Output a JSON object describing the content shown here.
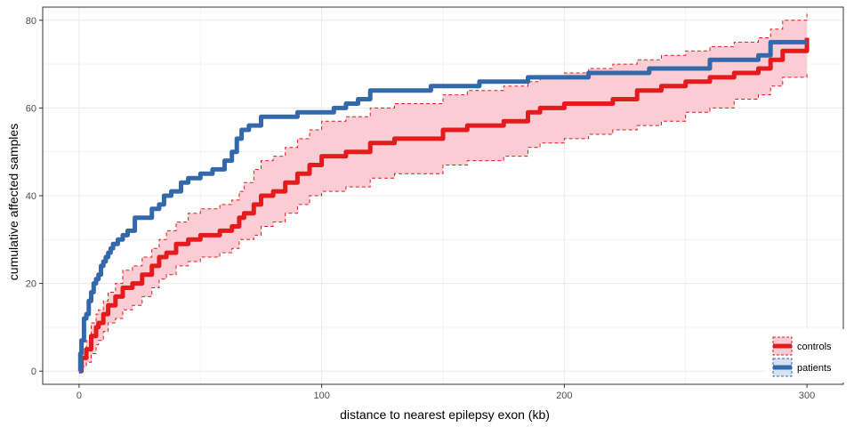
{
  "chart_data": {
    "type": "line",
    "step": true,
    "xlabel": "distance to nearest epilepsy exon (kb)",
    "ylabel": "cumulative affected samples",
    "xlim": [
      -15,
      315
    ],
    "ylim": [
      -3,
      83
    ],
    "xticks": [
      0,
      100,
      200,
      300
    ],
    "yticks": [
      0,
      20,
      40,
      60,
      80
    ],
    "grid": true,
    "legend_position": "bottom-right",
    "colors": {
      "controls": "#e41a1c",
      "controls_band": "#f9cdd3",
      "patients": "#3369ab",
      "patients_band": "#d5e2f1",
      "grid": "#ebebeb",
      "border": "#333333"
    },
    "series": [
      {
        "name": "controls",
        "x": [
          0,
          1,
          3,
          5,
          7,
          8,
          10,
          12,
          15,
          18,
          22,
          26,
          30,
          33,
          36,
          40,
          45,
          50,
          58,
          63,
          66,
          68,
          72,
          75,
          80,
          85,
          90,
          95,
          100,
          110,
          120,
          130,
          150,
          160,
          175,
          185,
          190,
          200,
          210,
          220,
          230,
          240,
          250,
          260,
          270,
          280,
          285,
          290,
          300
        ],
        "y": [
          0,
          3,
          5,
          8,
          10,
          11,
          13,
          15,
          17,
          19,
          20,
          22,
          24,
          26,
          27,
          29,
          30,
          31,
          32,
          33,
          35,
          36,
          38,
          40,
          41,
          43,
          45,
          47,
          49,
          50,
          52,
          53,
          55,
          56,
          57,
          59,
          60,
          61,
          61,
          62,
          64,
          65,
          66,
          67,
          68,
          69,
          71,
          73,
          76
        ]
      },
      {
        "name": "controls_upper",
        "x": [
          0,
          1,
          3,
          5,
          7,
          8,
          10,
          12,
          15,
          18,
          22,
          26,
          30,
          33,
          36,
          40,
          45,
          50,
          58,
          63,
          66,
          68,
          72,
          75,
          80,
          85,
          90,
          95,
          100,
          110,
          120,
          130,
          150,
          160,
          175,
          185,
          190,
          200,
          210,
          220,
          230,
          240,
          250,
          260,
          270,
          280,
          285,
          290,
          300
        ],
        "y": [
          1,
          5,
          7,
          11,
          13,
          14,
          16,
          18,
          20,
          23,
          24,
          26,
          28,
          30,
          32,
          34,
          36,
          37,
          38,
          39,
          41,
          43,
          46,
          48,
          49,
          51,
          53,
          55,
          57,
          58,
          60,
          61,
          63,
          64,
          65,
          66,
          67,
          68,
          69,
          70,
          71,
          72,
          73,
          74,
          75,
          76,
          78,
          80,
          82
        ]
      },
      {
        "name": "controls_lower",
        "x": [
          0,
          1,
          3,
          5,
          7,
          8,
          10,
          12,
          15,
          18,
          22,
          26,
          30,
          33,
          36,
          40,
          45,
          50,
          58,
          63,
          66,
          68,
          72,
          75,
          80,
          85,
          90,
          95,
          100,
          110,
          120,
          130,
          150,
          160,
          175,
          185,
          190,
          200,
          210,
          220,
          230,
          240,
          250,
          260,
          270,
          280,
          285,
          290,
          300
        ],
        "y": [
          0,
          1,
          2,
          4,
          6,
          7,
          9,
          11,
          12,
          14,
          15,
          17,
          19,
          21,
          22,
          24,
          25,
          26,
          27,
          28,
          30,
          30,
          31,
          33,
          34,
          36,
          38,
          40,
          41,
          42,
          44,
          45,
          47,
          48,
          49,
          51,
          52,
          53,
          54,
          55,
          56,
          57,
          59,
          60,
          62,
          63,
          65,
          67,
          68
        ]
      },
      {
        "name": "patients",
        "x": [
          0,
          0.5,
          1,
          2,
          3,
          4,
          5,
          6,
          7,
          8,
          9,
          10,
          11,
          12,
          13,
          14,
          16,
          18,
          20,
          23,
          26,
          30,
          33,
          35,
          38,
          42,
          45,
          50,
          55,
          60,
          63,
          65,
          67,
          70,
          75,
          80,
          90,
          100,
          105,
          110,
          115,
          120,
          145,
          165,
          185,
          210,
          235,
          260,
          280,
          285,
          300
        ],
        "y": [
          0,
          4,
          7,
          12,
          13,
          16,
          18,
          20,
          21,
          22,
          24,
          25,
          26,
          27,
          28,
          29,
          30,
          31,
          32,
          35,
          35,
          37,
          38,
          40,
          41,
          43,
          44,
          45,
          46,
          48,
          50,
          53,
          55,
          56,
          58,
          58,
          59,
          59,
          60,
          61,
          62,
          64,
          65,
          66,
          67,
          68,
          69,
          71,
          72,
          75,
          75
        ]
      }
    ],
    "legend": [
      {
        "label": "controls",
        "color": "#e41a1c",
        "fill": "#f9cdd3"
      },
      {
        "label": "patients",
        "color": "#3369ab",
        "fill": "#d5e2f1"
      }
    ]
  }
}
